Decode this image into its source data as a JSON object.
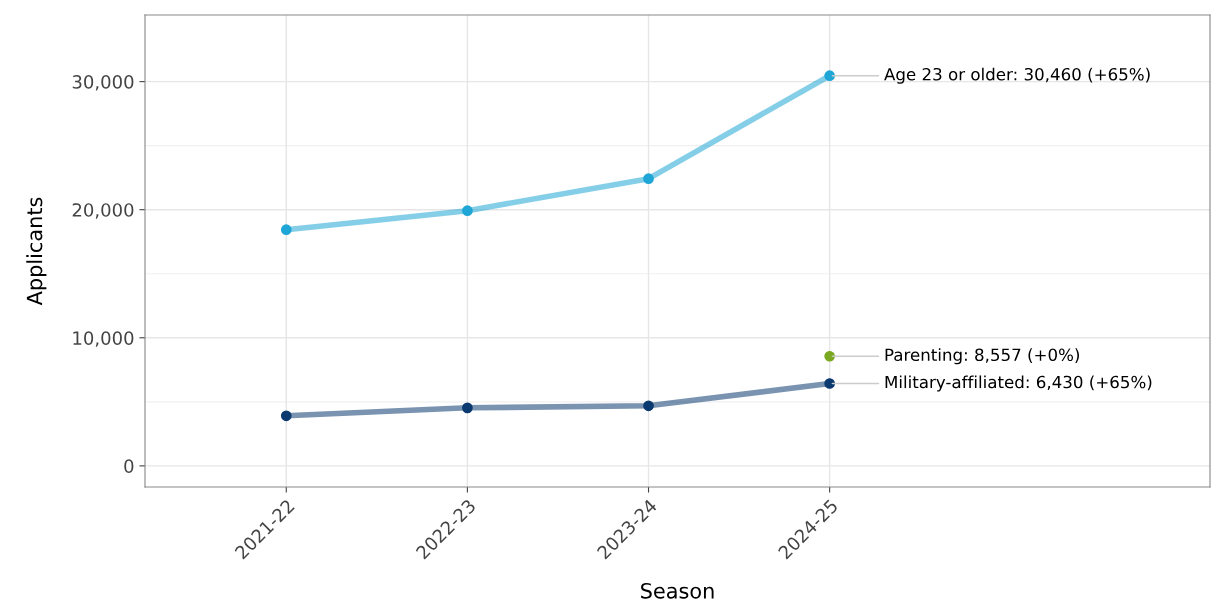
{
  "chart_data": {
    "type": "line",
    "xlabel": "Season",
    "ylabel": "Applicants",
    "categories": [
      "2021-22",
      "2022-23",
      "2023-24",
      "2024-25"
    ],
    "series": [
      {
        "color": "#1fa6d6",
        "values": [
          18440,
          19920,
          22420,
          30460
        ]
      },
      {
        "color": "#0b3a70",
        "values": [
          3910,
          4530,
          4690,
          6430
        ]
      },
      {
        "type": "scatter",
        "color": "#7aa820",
        "values": [
          null,
          null,
          null,
          8557
        ]
      }
    ],
    "ylim": [
      -1650,
      35200
    ],
    "yticks": [
      {
        "value": 0,
        "label": "0"
      },
      {
        "value": 10000,
        "label": "10,000"
      },
      {
        "value": 20000,
        "label": "20,000"
      },
      {
        "value": 30000,
        "label": "30,000"
      }
    ],
    "grid": true,
    "legend": false,
    "marker": "circle",
    "annotations": [
      {
        "text": "Age 23 or older: 30,460 (+65%)",
        "x": "2024-25",
        "y": 30460
      },
      {
        "text": "Parenting: 8,557 (+0%)",
        "x": "2024-25",
        "y": 8557
      },
      {
        "text": "Military-affiliated: 6,430 (+65%)",
        "x": "2024-25",
        "y": 6430
      }
    ]
  }
}
